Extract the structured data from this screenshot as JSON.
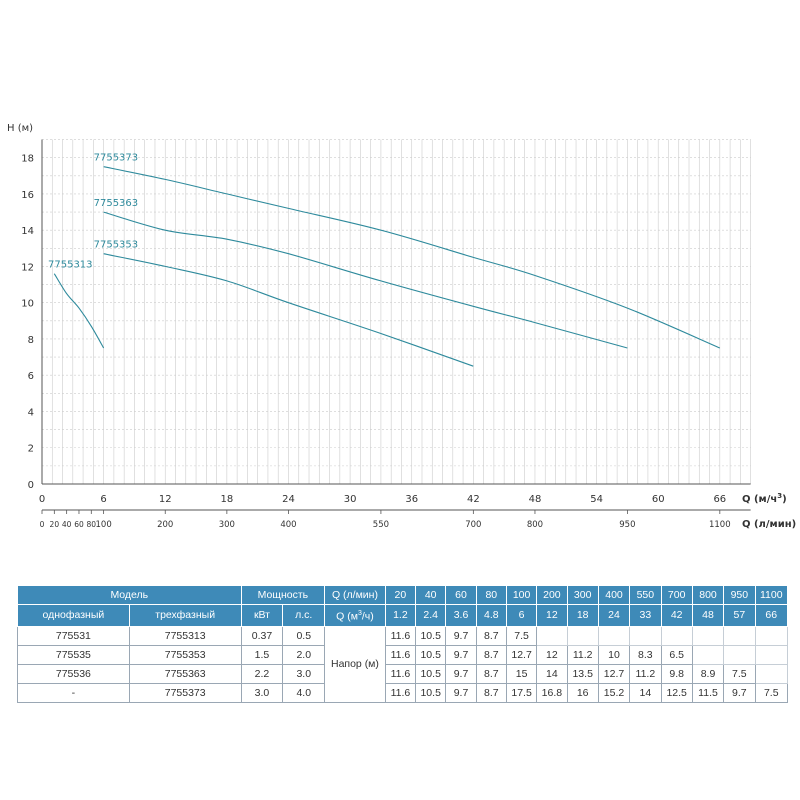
{
  "colors": {
    "curve": "#2e8a9c",
    "grid": "#cccccc",
    "axis": "#555555",
    "header_bg": "#3e8ab8",
    "header_text": "#ffffff"
  },
  "chart_data": {
    "type": "line",
    "ylabel": "H (м)",
    "xlabel": "Q (м³/ч)",
    "x2label": "Q (л/мин)",
    "ylim": [
      0,
      19
    ],
    "xlim": [
      0,
      69
    ],
    "grid": true,
    "y_ticks": [
      0,
      2,
      4,
      6,
      8,
      10,
      12,
      14,
      16,
      18
    ],
    "x_ticks": [
      0,
      6,
      12,
      18,
      24,
      30,
      36,
      42,
      48,
      54,
      60,
      66
    ],
    "x2_ticks": [
      {
        "at": 0,
        "label": "0"
      },
      {
        "at": 1.2,
        "label": "20"
      },
      {
        "at": 2.4,
        "label": "40"
      },
      {
        "at": 3.6,
        "label": "60"
      },
      {
        "at": 4.8,
        "label": "80"
      },
      {
        "at": 6,
        "label": "100"
      },
      {
        "at": 12,
        "label": "200"
      },
      {
        "at": 18,
        "label": "300"
      },
      {
        "at": 24,
        "label": "400"
      },
      {
        "at": 33,
        "label": "550"
      },
      {
        "at": 42,
        "label": "700"
      },
      {
        "at": 48,
        "label": "800"
      },
      {
        "at": 57,
        "label": "950"
      },
      {
        "at": 66,
        "label": "1100"
      }
    ],
    "series": [
      {
        "name": "7755313",
        "x": [
          1.2,
          2.4,
          3.6,
          4.8,
          6
        ],
        "y": [
          11.6,
          10.5,
          9.7,
          8.7,
          7.5
        ]
      },
      {
        "name": "7755353",
        "x": [
          6,
          12,
          18,
          24,
          33,
          42
        ],
        "y": [
          12.7,
          12,
          11.2,
          10,
          8.3,
          6.5
        ]
      },
      {
        "name": "7755363",
        "x": [
          6,
          12,
          18,
          24,
          33,
          42,
          48,
          57
        ],
        "y": [
          15,
          14,
          13.5,
          12.7,
          11.2,
          9.8,
          8.9,
          7.5
        ]
      },
      {
        "name": "7755373",
        "x": [
          6,
          12,
          18,
          24,
          33,
          42,
          48,
          57,
          66
        ],
        "y": [
          17.5,
          16.8,
          16,
          15.2,
          14,
          12.5,
          11.5,
          9.7,
          7.5
        ]
      }
    ]
  },
  "table": {
    "h1": {
      "model": "Модель",
      "power": "Мощность",
      "q_lmin": "Q (л/мин)",
      "flows": [
        "20",
        "40",
        "60",
        "80",
        "100",
        "200",
        "300",
        "400",
        "550",
        "700",
        "800",
        "950",
        "1100"
      ]
    },
    "h2": {
      "single": "однофазный",
      "three": "трехфазный",
      "kw": "кВт",
      "hp": "л.с.",
      "q_m3h": "Q (м³/ч)",
      "flows": [
        "1.2",
        "2.4",
        "3.6",
        "4.8",
        "6",
        "12",
        "18",
        "24",
        "33",
        "42",
        "48",
        "57",
        "66"
      ]
    },
    "head_label": "Напор (м)",
    "rows": [
      {
        "single": "775531",
        "three": "7755313",
        "kw": "0.37",
        "hp": "0.5",
        "heads": [
          "11.6",
          "10.5",
          "9.7",
          "8.7",
          "7.5",
          "",
          "",
          "",
          "",
          "",
          "",
          "",
          ""
        ]
      },
      {
        "single": "775535",
        "three": "7755353",
        "kw": "1.5",
        "hp": "2.0",
        "heads": [
          "11.6",
          "10.5",
          "9.7",
          "8.7",
          "12.7",
          "12",
          "11.2",
          "10",
          "8.3",
          "6.5",
          "",
          "",
          ""
        ]
      },
      {
        "single": "775536",
        "three": "7755363",
        "kw": "2.2",
        "hp": "3.0",
        "heads": [
          "11.6",
          "10.5",
          "9.7",
          "8.7",
          "15",
          "14",
          "13.5",
          "12.7",
          "11.2",
          "9.8",
          "8.9",
          "7.5",
          ""
        ]
      },
      {
        "single": "-",
        "three": "7755373",
        "kw": "3.0",
        "hp": "4.0",
        "heads": [
          "11.6",
          "10.5",
          "9.7",
          "8.7",
          "17.5",
          "16.8",
          "16",
          "15.2",
          "14",
          "12.5",
          "11.5",
          "9.7",
          "7.5"
        ]
      }
    ]
  }
}
